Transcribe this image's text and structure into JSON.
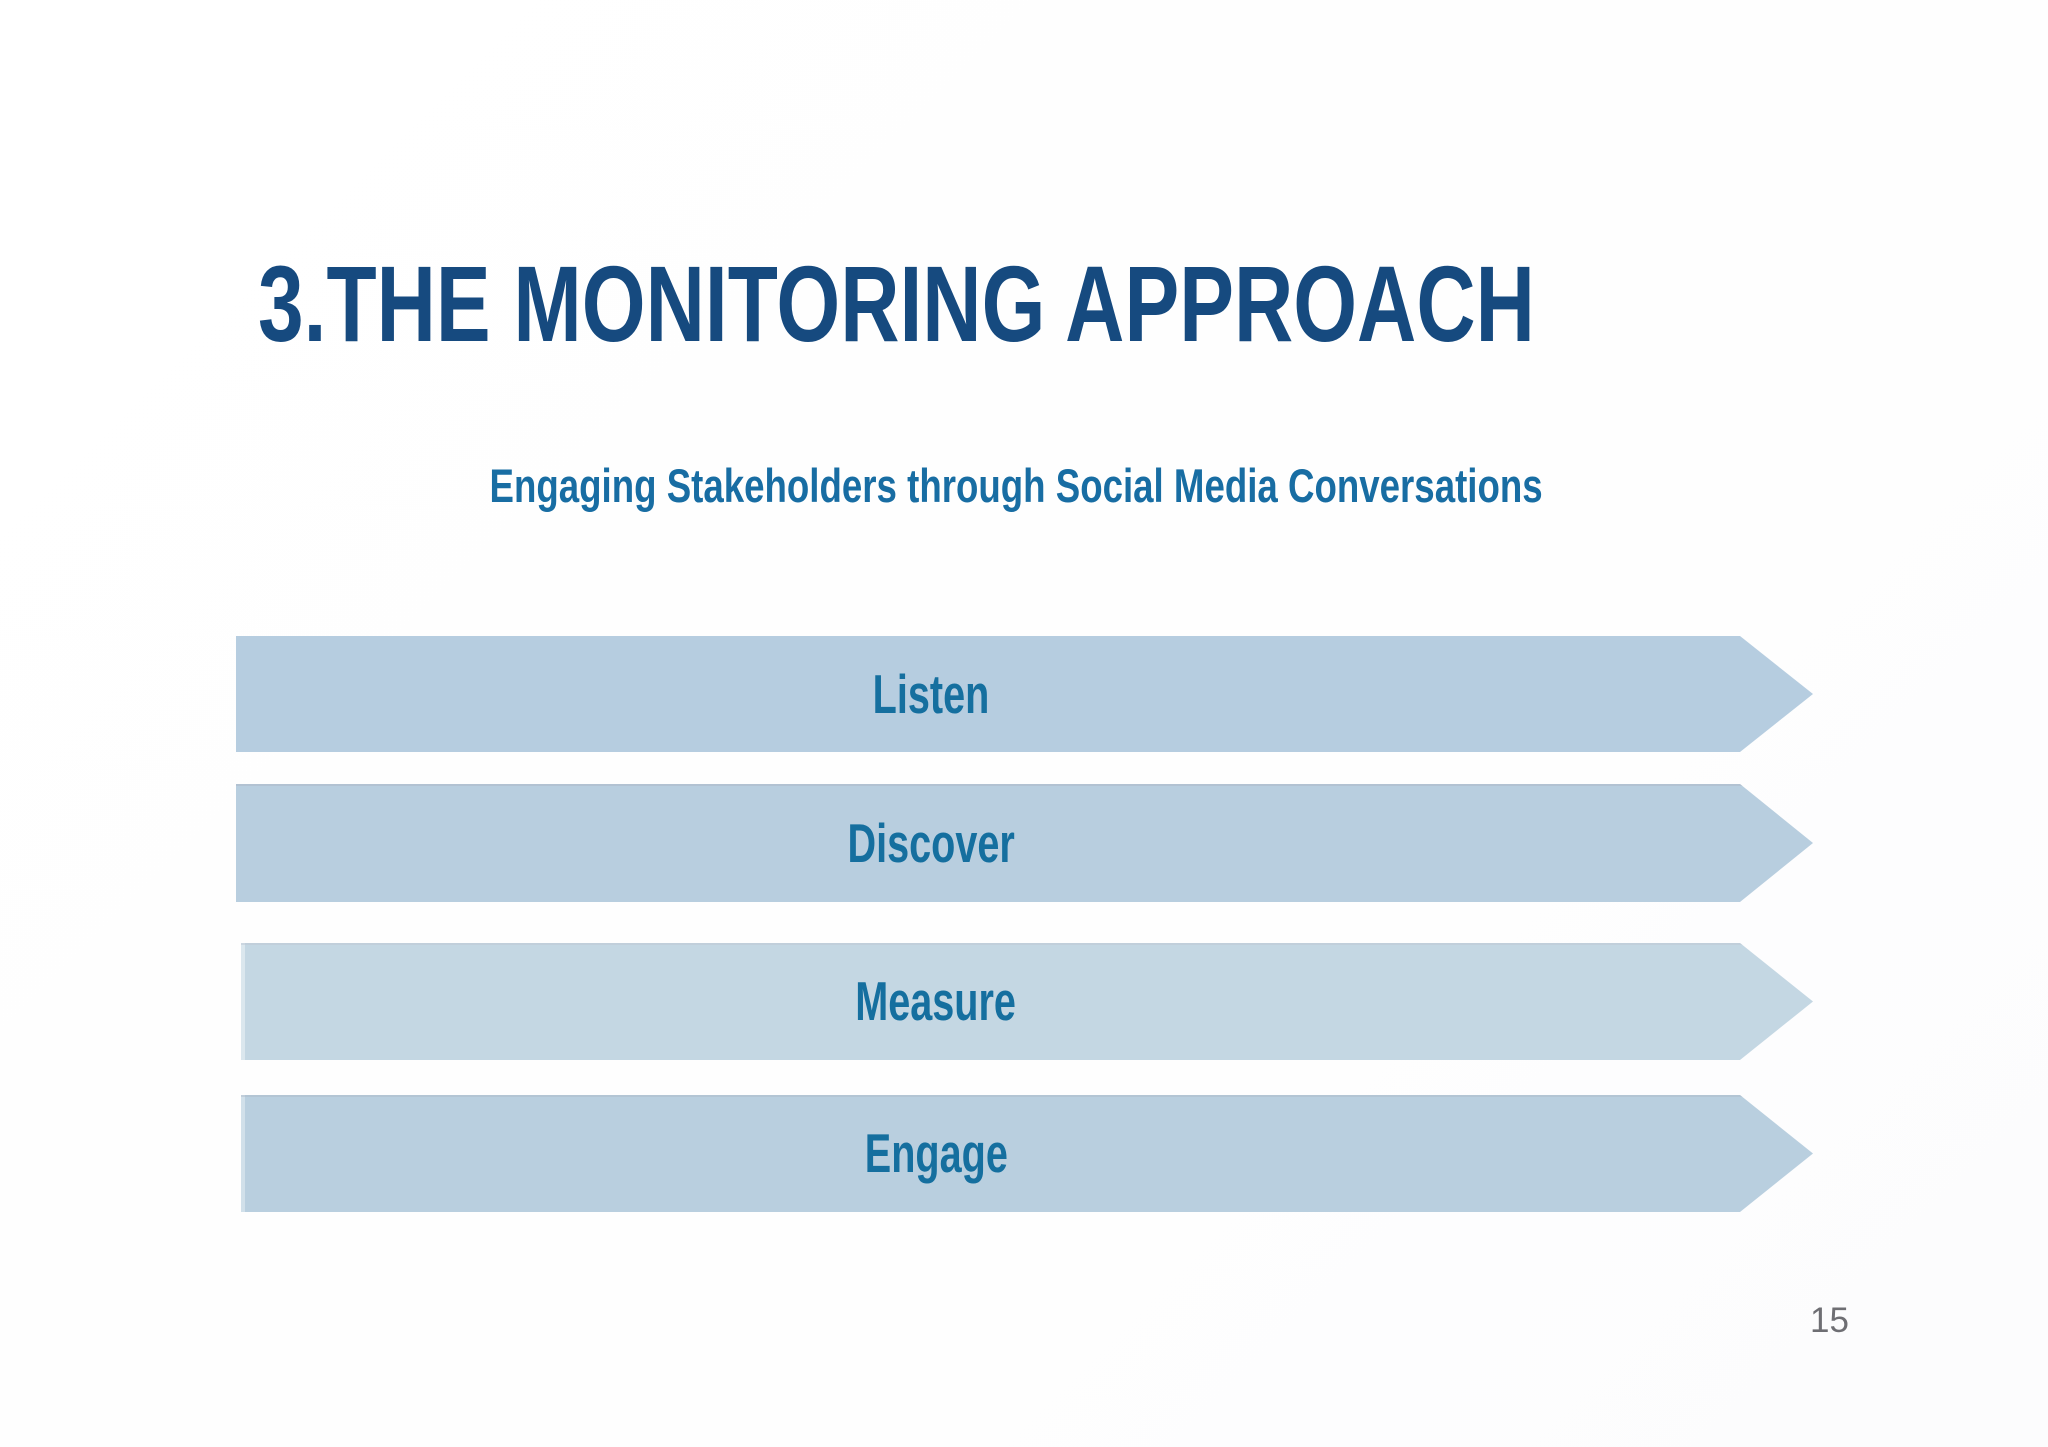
{
  "slide": {
    "title": "3.THE MONITORING APPROACH",
    "subtitle": "Engaging Stakeholders through Social Media Conversations",
    "page_number": "15",
    "steps": [
      {
        "label": "Listen",
        "fill": "#b6cde0"
      },
      {
        "label": "Discover",
        "fill": "#b8cedf"
      },
      {
        "label": "Measure",
        "fill": "#c4d7e3"
      },
      {
        "label": "Engage",
        "fill": "#b9cfdf"
      }
    ],
    "colors": {
      "title_text": "#164a7f",
      "subtitle_text": "#186da3",
      "step_label_text": "#156f9f",
      "page_number_text": "#6e6e73",
      "background": "#ffffff"
    }
  }
}
